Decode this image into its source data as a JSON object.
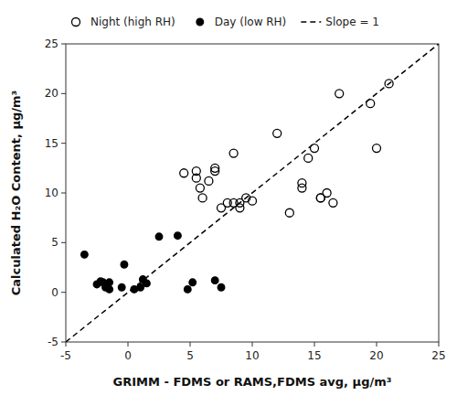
{
  "chart_data": {
    "type": "scatter",
    "xlabel": "GRIMM - FDMS or RAMS,FDMS avg, μg/m³",
    "ylabel": "Calculated H₂O Content, μg/m³",
    "xlim": [
      -5,
      25
    ],
    "ylim": [
      -5,
      25
    ],
    "xticks": [
      -5,
      0,
      5,
      10,
      15,
      20,
      25
    ],
    "yticks": [
      -5,
      0,
      5,
      10,
      15,
      20,
      25
    ],
    "grid": false,
    "legend": "top",
    "series": [
      {
        "name": "Night (high RH)",
        "type": "scatter",
        "marker": "open-circle",
        "color": "black",
        "x": [
          4.5,
          5.5,
          5.5,
          5.8,
          6.0,
          6.5,
          7.0,
          7.0,
          7.5,
          8.0,
          8.5,
          8.5,
          9.0,
          9.0,
          9.5,
          10.0,
          12.0,
          13.0,
          14.0,
          14.0,
          14.5,
          15.0,
          15.5,
          15.5,
          16.0,
          16.5,
          17.0,
          19.5,
          20.0,
          21.0
        ],
        "values": [
          12.0,
          11.5,
          12.2,
          10.5,
          9.5,
          11.2,
          12.2,
          12.5,
          8.5,
          9.0,
          14.0,
          9.0,
          9.0,
          8.5,
          9.5,
          9.2,
          16.0,
          8.0,
          10.5,
          11.0,
          13.5,
          14.5,
          9.5,
          9.5,
          10.0,
          9.0,
          20.0,
          19.0,
          14.5,
          21.0
        ]
      },
      {
        "name": "Day (low RH)",
        "type": "scatter",
        "marker": "circle",
        "color": "black",
        "x": [
          -3.5,
          -2.5,
          -2.2,
          -2.0,
          -1.8,
          -1.5,
          -1.5,
          -0.5,
          -0.3,
          0.5,
          1.0,
          1.2,
          1.5,
          2.5,
          4.0,
          4.8,
          5.2,
          7.0,
          7.5
        ],
        "values": [
          3.8,
          0.8,
          1.1,
          1.0,
          0.5,
          1.0,
          0.3,
          0.5,
          2.8,
          0.3,
          0.5,
          1.3,
          0.9,
          5.6,
          5.7,
          0.3,
          1.0,
          1.2,
          0.5
        ]
      },
      {
        "name": "Slope = 1",
        "type": "line",
        "line_style": "dashed",
        "color": "black",
        "x": [
          -5,
          25
        ],
        "values": [
          -5,
          25
        ]
      }
    ]
  }
}
